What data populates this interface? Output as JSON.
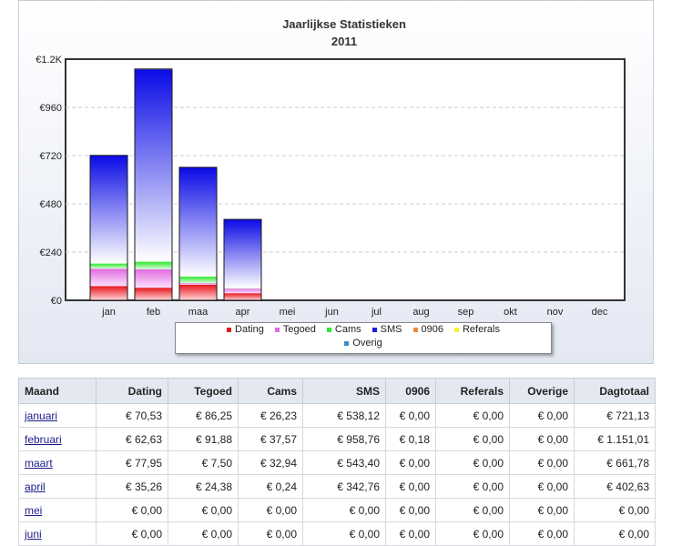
{
  "chart_data": {
    "type": "bar",
    "stacked": true,
    "title": "Jaarlijkse Statistieken",
    "subtitle": "2011",
    "categories": [
      "jan",
      "feb",
      "maa",
      "apr",
      "mei",
      "jun",
      "jul",
      "aug",
      "sep",
      "okt",
      "nov",
      "dec"
    ],
    "ylim": [
      0,
      1200
    ],
    "yticks": [
      0,
      240,
      480,
      720,
      960,
      1200
    ],
    "ytick_labels": [
      "€0",
      "€240",
      "€480",
      "€720",
      "€960",
      "€1.2K"
    ],
    "grid": true,
    "series": [
      {
        "name": "Dating",
        "color": "#e8141c",
        "values": [
          70.53,
          62.63,
          77.95,
          35.26,
          0,
          0,
          0,
          0,
          0,
          0,
          0,
          0
        ]
      },
      {
        "name": "Tegoed",
        "color": "#e36ae0",
        "values": [
          86.25,
          91.88,
          7.5,
          24.38,
          0,
          0,
          0,
          0,
          0,
          0,
          0,
          0
        ]
      },
      {
        "name": "Cams",
        "color": "#2ee82e",
        "values": [
          26.23,
          37.57,
          32.94,
          0.24,
          0,
          0,
          0,
          0,
          0,
          0,
          0,
          0
        ]
      },
      {
        "name": "SMS",
        "color": "#1a1ae8",
        "values": [
          538.12,
          958.76,
          543.4,
          342.76,
          0,
          0,
          0,
          0,
          0,
          0,
          0,
          0
        ]
      },
      {
        "name": "0906",
        "color": "#f08a3a",
        "values": [
          0,
          0.18,
          0,
          0,
          0,
          0,
          0,
          0,
          0,
          0,
          0,
          0
        ]
      },
      {
        "name": "Referals",
        "color": "#f2f23a",
        "values": [
          0,
          0,
          0,
          0,
          0,
          0,
          0,
          0,
          0,
          0,
          0,
          0
        ]
      },
      {
        "name": "Overig",
        "color": "#3a8ec9",
        "values": [
          0,
          0,
          0,
          0,
          0,
          0,
          0,
          0,
          0,
          0,
          0,
          0
        ]
      }
    ]
  },
  "table": {
    "headers": [
      "Maand",
      "Dating",
      "Tegoed",
      "Cams",
      "SMS",
      "0906",
      "Referals",
      "Overige",
      "Dagtotaal"
    ],
    "rows": [
      [
        "januari",
        "€ 70,53",
        "€ 86,25",
        "€ 26,23",
        "€ 538,12",
        "€ 0,00",
        "€ 0,00",
        "€ 0,00",
        "€ 721,13"
      ],
      [
        "februari",
        "€ 62,63",
        "€ 91,88",
        "€ 37,57",
        "€ 958,76",
        "€ 0,18",
        "€ 0,00",
        "€ 0,00",
        "€ 1.151,01"
      ],
      [
        "maart",
        "€ 77,95",
        "€ 7,50",
        "€ 32,94",
        "€ 543,40",
        "€ 0,00",
        "€ 0,00",
        "€ 0,00",
        "€ 661,78"
      ],
      [
        "april",
        "€ 35,26",
        "€ 24,38",
        "€ 0,24",
        "€ 342,76",
        "€ 0,00",
        "€ 0,00",
        "€ 0,00",
        "€ 402,63"
      ],
      [
        "mei",
        "€ 0,00",
        "€ 0,00",
        "€ 0,00",
        "€ 0,00",
        "€ 0,00",
        "€ 0,00",
        "€ 0,00",
        "€ 0,00"
      ],
      [
        "juni",
        "€ 0,00",
        "€ 0,00",
        "€ 0,00",
        "€ 0,00",
        "€ 0,00",
        "€ 0,00",
        "€ 0,00",
        "€ 0,00"
      ]
    ]
  }
}
